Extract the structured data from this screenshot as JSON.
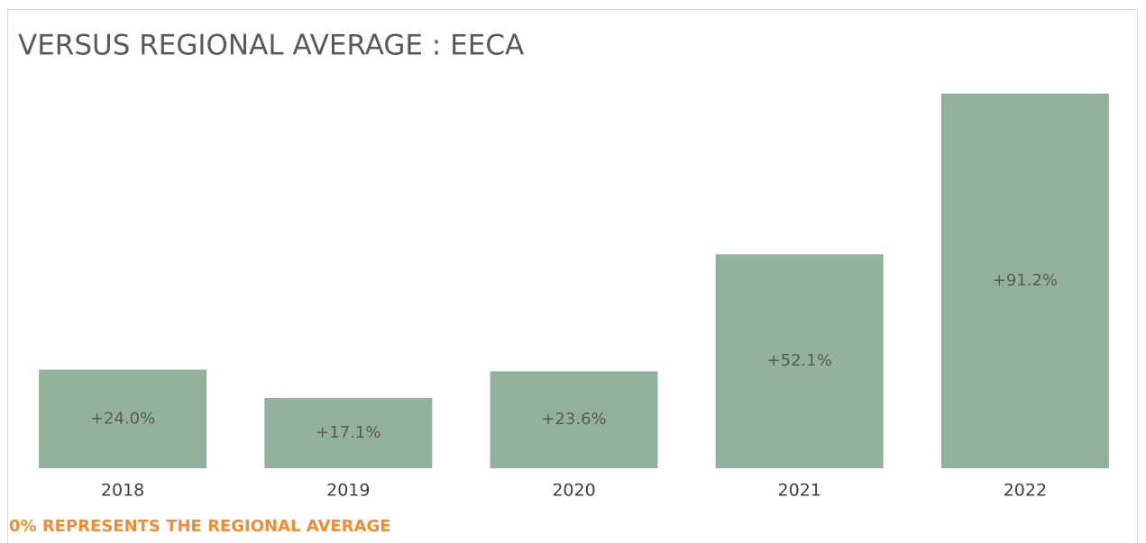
{
  "chart_data": {
    "type": "bar",
    "title": "VERSUS REGIONAL AVERAGE : EECA",
    "categories": [
      "2018",
      "2019",
      "2020",
      "2021",
      "2022"
    ],
    "values": [
      24.0,
      17.1,
      23.6,
      52.1,
      91.2
    ],
    "value_labels": [
      "+24.0%",
      "+17.1%",
      "+23.6%",
      "+52.1%",
      "+91.2%"
    ],
    "color": "#92b29d",
    "annotation": "0% REPRESENTS THE REGIONAL AVERAGE"
  }
}
